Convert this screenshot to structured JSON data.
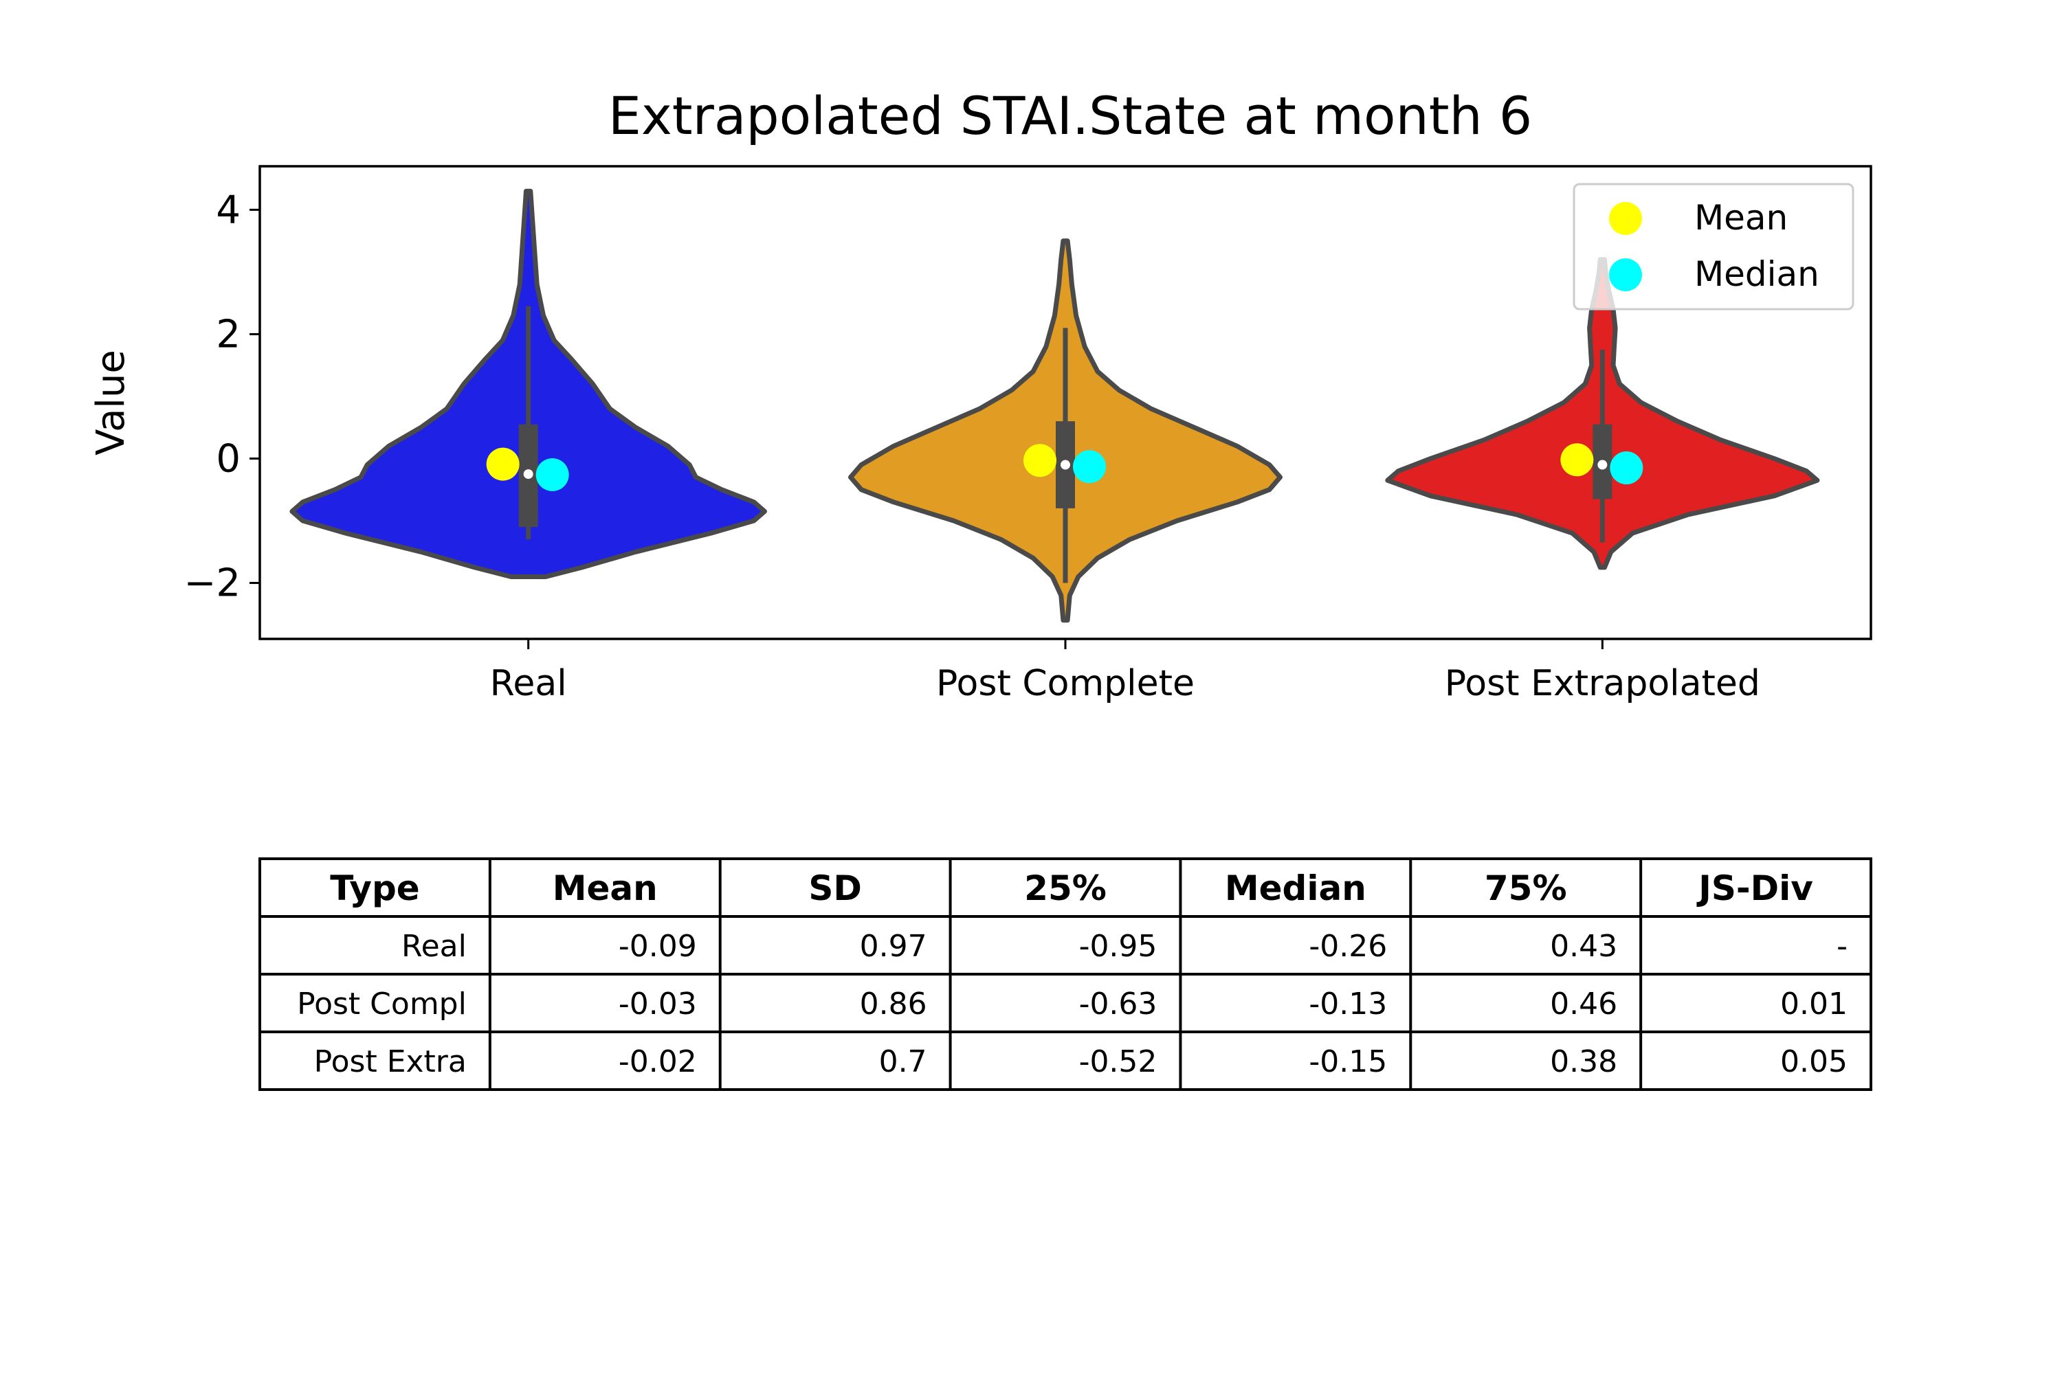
{
  "chart_data": {
    "type": "violin",
    "title": "Extrapolated STAI.State at month 6",
    "ylabel": "Value",
    "xlabel": "",
    "ylim": [
      -2.9,
      4.7
    ],
    "yticks": [
      -2,
      0,
      2,
      4
    ],
    "ytick_labels": [
      "−2",
      "0",
      "2",
      "4"
    ],
    "categories": [
      "Real",
      "Post Complete",
      "Post Extrapolated"
    ],
    "grid": false,
    "legend": {
      "placement": "top-right",
      "entries": [
        {
          "label": "Mean",
          "color": "#ffff00"
        },
        {
          "label": "Median",
          "color": "#00ffff"
        }
      ]
    },
    "violins": [
      {
        "category": "Real",
        "color": "#1f22e5",
        "min": -1.9,
        "max": 4.3,
        "box": {
          "q1": -1.1,
          "q3": 0.55,
          "whisker_low": -1.3,
          "whisker_high": 2.45,
          "median": -0.25
        },
        "mean": -0.09,
        "median": -0.26,
        "profile": [
          [
            -1.9,
            0.08
          ],
          [
            -1.75,
            0.25
          ],
          [
            -1.5,
            0.5
          ],
          [
            -1.2,
            0.85
          ],
          [
            -1.0,
            1.05
          ],
          [
            -0.85,
            1.1
          ],
          [
            -0.7,
            1.05
          ],
          [
            -0.5,
            0.9
          ],
          [
            -0.3,
            0.78
          ],
          [
            -0.1,
            0.75
          ],
          [
            0.2,
            0.65
          ],
          [
            0.5,
            0.5
          ],
          [
            0.8,
            0.38
          ],
          [
            1.2,
            0.3
          ],
          [
            1.6,
            0.2
          ],
          [
            1.9,
            0.12
          ],
          [
            2.3,
            0.07
          ],
          [
            2.8,
            0.04
          ],
          [
            3.3,
            0.03
          ],
          [
            3.8,
            0.02
          ],
          [
            4.3,
            0.01
          ]
        ]
      },
      {
        "category": "Post Complete",
        "color": "#e09c23",
        "min": -2.6,
        "max": 3.5,
        "box": {
          "q1": -0.8,
          "q3": 0.6,
          "whisker_low": -2.0,
          "whisker_high": 2.1,
          "median": -0.1
        },
        "mean": -0.03,
        "median": -0.13,
        "profile": [
          [
            -2.6,
            0.01
          ],
          [
            -2.2,
            0.02
          ],
          [
            -1.9,
            0.06
          ],
          [
            -1.6,
            0.15
          ],
          [
            -1.3,
            0.3
          ],
          [
            -1.0,
            0.52
          ],
          [
            -0.7,
            0.8
          ],
          [
            -0.5,
            0.95
          ],
          [
            -0.3,
            1.0
          ],
          [
            -0.1,
            0.95
          ],
          [
            0.2,
            0.8
          ],
          [
            0.5,
            0.6
          ],
          [
            0.8,
            0.4
          ],
          [
            1.1,
            0.25
          ],
          [
            1.4,
            0.15
          ],
          [
            1.8,
            0.09
          ],
          [
            2.3,
            0.05
          ],
          [
            2.8,
            0.03
          ],
          [
            3.2,
            0.02
          ],
          [
            3.5,
            0.01
          ]
        ]
      },
      {
        "category": "Post Extrapolated",
        "color": "#e12121",
        "min": -1.75,
        "max": 3.2,
        "box": {
          "q1": -0.65,
          "q3": 0.55,
          "whisker_low": -1.35,
          "whisker_high": 1.75,
          "median": -0.1
        },
        "mean": -0.02,
        "median": -0.15,
        "profile": [
          [
            -1.75,
            0.01
          ],
          [
            -1.5,
            0.04
          ],
          [
            -1.2,
            0.14
          ],
          [
            -0.9,
            0.4
          ],
          [
            -0.6,
            0.8
          ],
          [
            -0.35,
            1.0
          ],
          [
            -0.2,
            0.95
          ],
          [
            0.0,
            0.8
          ],
          [
            0.3,
            0.55
          ],
          [
            0.6,
            0.35
          ],
          [
            0.9,
            0.18
          ],
          [
            1.2,
            0.08
          ],
          [
            1.5,
            0.05
          ],
          [
            1.8,
            0.055
          ],
          [
            2.1,
            0.06
          ],
          [
            2.4,
            0.05
          ],
          [
            2.7,
            0.03
          ],
          [
            3.0,
            0.015
          ],
          [
            3.2,
            0.01
          ]
        ]
      }
    ]
  },
  "stats_table": {
    "headers": [
      "Type",
      "Mean",
      "SD",
      "25%",
      "Median",
      "75%",
      "JS-Div"
    ],
    "rows": [
      [
        "Real",
        "-0.09",
        "0.97",
        "-0.95",
        "-0.26",
        "0.43",
        "-"
      ],
      [
        "Post Compl",
        "-0.03",
        "0.86",
        "-0.63",
        "-0.13",
        "0.46",
        "0.01"
      ],
      [
        "Post Extra",
        "-0.02",
        "0.7",
        "-0.52",
        "-0.15",
        "0.38",
        "0.05"
      ]
    ]
  }
}
